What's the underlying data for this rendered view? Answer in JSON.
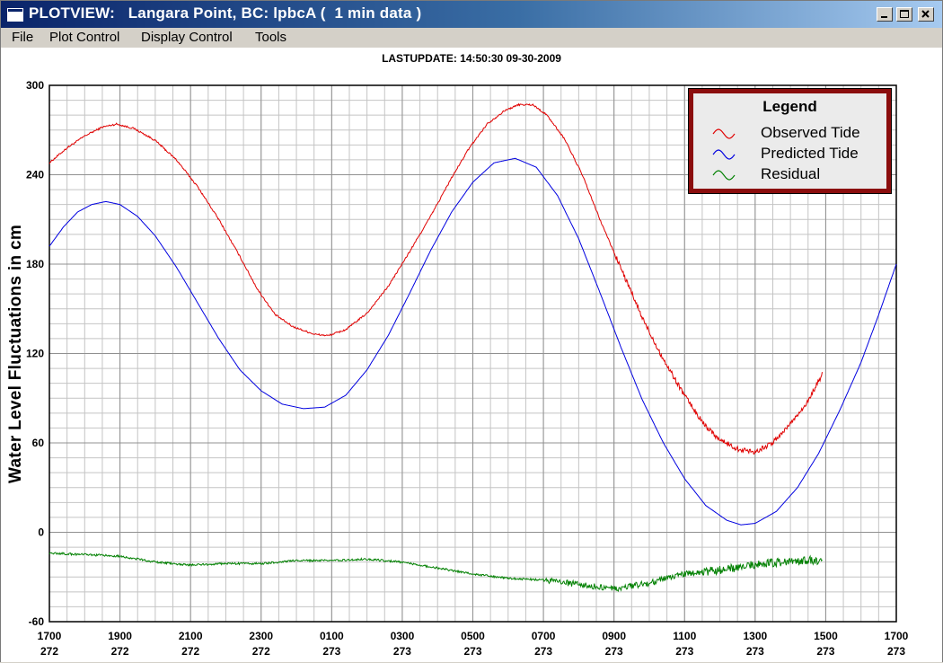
{
  "window": {
    "title": "PLOTVIEW:   Langara Point, BC: lpbcA (  1 min data )"
  },
  "menu": [
    "File",
    "Plot Control",
    "Display Control",
    "Tools"
  ],
  "header": {
    "lastupdate": "LASTUPDATE: 14:50:30  09-30-2009"
  },
  "legend": {
    "title": "Legend",
    "entries": [
      {
        "label": "Observed Tide",
        "color": "#e00000"
      },
      {
        "label": "Predicted Tide",
        "color": "#0000e0"
      },
      {
        "label": "Residual",
        "color": "#008000"
      }
    ]
  },
  "chart_data": {
    "type": "line",
    "ylabel": "Water Level Fluctuations in cm",
    "ylim": [
      -60,
      300
    ],
    "yticks": [
      300,
      240,
      180,
      120,
      60,
      0,
      -60
    ],
    "xlim": [
      17,
      41
    ],
    "xticks": [
      {
        "time": "1700",
        "day": "272"
      },
      {
        "time": "1900",
        "day": "272"
      },
      {
        "time": "2100",
        "day": "272"
      },
      {
        "time": "2300",
        "day": "272"
      },
      {
        "time": "0100",
        "day": "273"
      },
      {
        "time": "0300",
        "day": "273"
      },
      {
        "time": "0500",
        "day": "273"
      },
      {
        "time": "0700",
        "day": "273"
      },
      {
        "time": "0900",
        "day": "273"
      },
      {
        "time": "1100",
        "day": "273"
      },
      {
        "time": "1300",
        "day": "273"
      },
      {
        "time": "1500",
        "day": "273"
      },
      {
        "time": "1700",
        "day": "273"
      }
    ],
    "grid": true,
    "series": [
      {
        "name": "Observed Tide",
        "color": "#e00000",
        "points": [
          [
            17.0,
            248
          ],
          [
            17.5,
            258
          ],
          [
            18.0,
            266
          ],
          [
            18.5,
            272
          ],
          [
            18.9,
            274
          ],
          [
            19.4,
            271
          ],
          [
            20.0,
            263
          ],
          [
            20.6,
            250
          ],
          [
            21.2,
            232
          ],
          [
            21.8,
            210
          ],
          [
            22.4,
            185
          ],
          [
            22.9,
            163
          ],
          [
            23.4,
            146
          ],
          [
            23.9,
            138
          ],
          [
            24.5,
            133
          ],
          [
            24.9,
            132
          ],
          [
            25.4,
            136
          ],
          [
            26.0,
            147
          ],
          [
            26.6,
            165
          ],
          [
            27.2,
            188
          ],
          [
            27.8,
            212
          ],
          [
            28.4,
            238
          ],
          [
            28.9,
            258
          ],
          [
            29.4,
            274
          ],
          [
            29.9,
            283
          ],
          [
            30.3,
            287
          ],
          [
            30.7,
            287
          ],
          [
            31.1,
            280
          ],
          [
            31.6,
            264
          ],
          [
            32.1,
            240
          ],
          [
            32.6,
            210
          ],
          [
            33.2,
            177
          ],
          [
            33.8,
            144
          ],
          [
            34.4,
            116
          ],
          [
            35.0,
            92
          ],
          [
            35.5,
            74
          ],
          [
            36.0,
            62
          ],
          [
            36.5,
            56
          ],
          [
            37.0,
            54
          ],
          [
            37.5,
            60
          ],
          [
            38.0,
            73
          ],
          [
            38.5,
            88
          ],
          [
            38.9,
            106
          ]
        ]
      },
      {
        "name": "Predicted Tide",
        "color": "#0000e0",
        "points": [
          [
            17.0,
            192
          ],
          [
            17.4,
            205
          ],
          [
            17.8,
            215
          ],
          [
            18.2,
            220
          ],
          [
            18.6,
            222
          ],
          [
            19.0,
            220
          ],
          [
            19.5,
            212
          ],
          [
            20.0,
            199
          ],
          [
            20.6,
            178
          ],
          [
            21.2,
            154
          ],
          [
            21.8,
            130
          ],
          [
            22.4,
            109
          ],
          [
            23.0,
            95
          ],
          [
            23.6,
            86
          ],
          [
            24.2,
            83
          ],
          [
            24.8,
            84
          ],
          [
            25.4,
            92
          ],
          [
            26.0,
            109
          ],
          [
            26.6,
            132
          ],
          [
            27.2,
            160
          ],
          [
            27.8,
            189
          ],
          [
            28.4,
            215
          ],
          [
            29.0,
            235
          ],
          [
            29.6,
            248
          ],
          [
            30.2,
            251
          ],
          [
            30.8,
            245
          ],
          [
            31.4,
            226
          ],
          [
            32.0,
            197
          ],
          [
            32.6,
            161
          ],
          [
            33.2,
            124
          ],
          [
            33.8,
            89
          ],
          [
            34.4,
            60
          ],
          [
            35.0,
            36
          ],
          [
            35.6,
            18
          ],
          [
            36.2,
            8
          ],
          [
            36.6,
            5
          ],
          [
            37.0,
            6
          ],
          [
            37.6,
            14
          ],
          [
            38.2,
            30
          ],
          [
            38.8,
            53
          ],
          [
            39.4,
            82
          ],
          [
            40.0,
            114
          ],
          [
            40.5,
            146
          ],
          [
            41.0,
            180
          ]
        ]
      },
      {
        "name": "Residual",
        "color": "#008000",
        "points": [
          [
            17.0,
            -14
          ],
          [
            18.0,
            -15
          ],
          [
            19.0,
            -16
          ],
          [
            20.0,
            -20
          ],
          [
            21.0,
            -22
          ],
          [
            22.0,
            -21
          ],
          [
            23.0,
            -21
          ],
          [
            24.0,
            -19
          ],
          [
            25.0,
            -19
          ],
          [
            26.0,
            -18
          ],
          [
            27.0,
            -20
          ],
          [
            28.0,
            -24
          ],
          [
            29.0,
            -28
          ],
          [
            30.0,
            -31
          ],
          [
            31.0,
            -32
          ],
          [
            32.0,
            -35
          ],
          [
            33.0,
            -38
          ],
          [
            34.0,
            -34
          ],
          [
            35.0,
            -28
          ],
          [
            36.0,
            -25
          ],
          [
            37.0,
            -22
          ],
          [
            38.0,
            -19
          ],
          [
            38.9,
            -19
          ]
        ]
      }
    ]
  }
}
